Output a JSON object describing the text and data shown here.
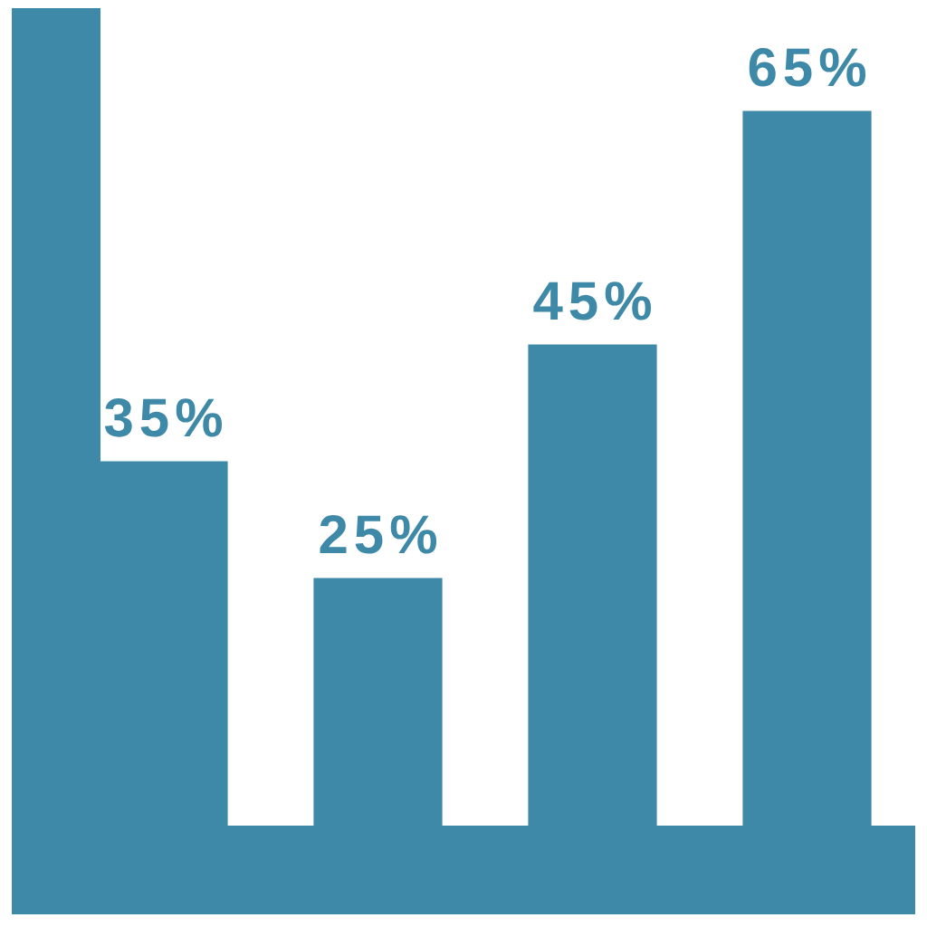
{
  "chart_data": {
    "type": "bar",
    "categories": [
      null,
      null,
      null,
      null
    ],
    "values": [
      35,
      25,
      45,
      65
    ],
    "color": "#3e89a8",
    "value_labels": [
      "35%",
      "25%",
      "45%",
      "65%"
    ],
    "tick_labels": false
  }
}
